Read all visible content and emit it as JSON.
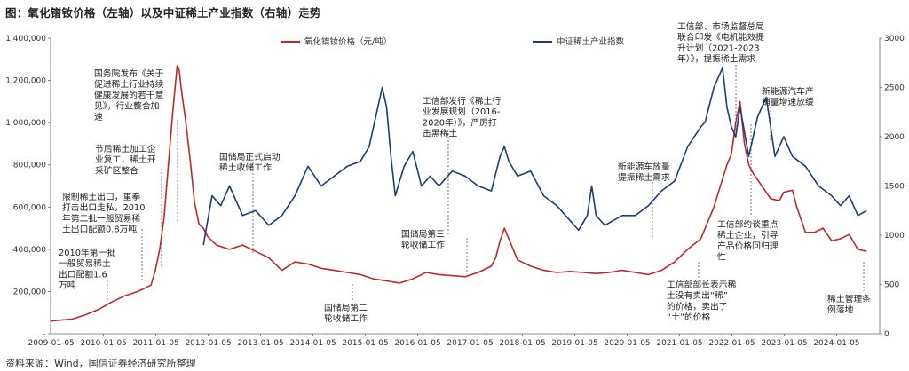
{
  "title": "图：氧化镨钕价格（左轴）以及中证稀土产业指数（右轴）走势",
  "source": "资料来源：Wind，国信证券经济研究所整理",
  "chart_data": {
    "type": "line",
    "title": "图：氧化镨钕价格（左轴）以及中证稀土产业指数（右轴）走势",
    "x_ticks": [
      "2009-01-05",
      "2010-01-05",
      "2011-01-05",
      "2012-01-05",
      "2013-01-05",
      "2014-01-05",
      "2015-01-05",
      "2016-01-05",
      "2017-01-05",
      "2018-01-05",
      "2019-01-05",
      "2020-01-05",
      "2021-01-05",
      "2022-01-05",
      "2023-01-05",
      "2024-01-05"
    ],
    "y_left": {
      "min": 0,
      "max": 1400000,
      "ticks": [
        0,
        200000,
        400000,
        600000,
        800000,
        1000000,
        1200000,
        1400000
      ],
      "tick_labels": [
        "-",
        "200,000",
        "400,000",
        "600,000",
        "800,000",
        "1,000,000",
        "1,200,000",
        "1,400,000"
      ]
    },
    "y_right": {
      "min": 0,
      "max": 3000,
      "ticks": [
        0,
        500,
        1000,
        1500,
        2000,
        2500,
        3000
      ],
      "tick_labels": [
        "0",
        "500",
        "1000",
        "1500",
        "2000",
        "2500",
        "3000"
      ]
    },
    "grid": false,
    "legend": "top",
    "colors": {
      "price": "#c0272d",
      "index": "#1f3d73"
    },
    "series": [
      {
        "name": "氧化镨钕价格（元/吨）",
        "axis": "left",
        "color": "#c0272d",
        "x": [
          "2009-01",
          "2009-06",
          "2009-09",
          "2009-12",
          "2010-03",
          "2010-06",
          "2010-09",
          "2010-12",
          "2011-01",
          "2011-02",
          "2011-03",
          "2011-04",
          "2011-05",
          "2011-06",
          "2011-06-15",
          "2011-07",
          "2011-08",
          "2011-09",
          "2011-10",
          "2011-11",
          "2011-12",
          "2012-01",
          "2012-03",
          "2012-06",
          "2012-09",
          "2012-12",
          "2013-03",
          "2013-06",
          "2013-09",
          "2013-12",
          "2014-03",
          "2014-06",
          "2014-09",
          "2014-12",
          "2015-03",
          "2015-06",
          "2015-09",
          "2015-12",
          "2016-03",
          "2016-06",
          "2016-09",
          "2016-12",
          "2017-03",
          "2017-06",
          "2017-07",
          "2017-08",
          "2017-09",
          "2017-10",
          "2017-12",
          "2018-03",
          "2018-06",
          "2018-09",
          "2018-12",
          "2019-03",
          "2019-06",
          "2019-09",
          "2019-12",
          "2020-03",
          "2020-06",
          "2020-09",
          "2020-12",
          "2021-03",
          "2021-06",
          "2021-09",
          "2021-12",
          "2022-01",
          "2022-02",
          "2022-03",
          "2022-04",
          "2022-05",
          "2022-06",
          "2022-08",
          "2022-10",
          "2022-12",
          "2023-01",
          "2023-03",
          "2023-04",
          "2023-06",
          "2023-08",
          "2023-10",
          "2023-12",
          "2024-02",
          "2024-04",
          "2024-06",
          "2024-08"
        ],
        "values": [
          60000,
          70000,
          90000,
          115000,
          150000,
          180000,
          200000,
          230000,
          300000,
          400000,
          550000,
          800000,
          1050000,
          1270000,
          1250000,
          1150000,
          1000000,
          820000,
          620000,
          520000,
          500000,
          460000,
          420000,
          400000,
          420000,
          390000,
          360000,
          300000,
          340000,
          330000,
          310000,
          300000,
          290000,
          280000,
          260000,
          250000,
          240000,
          260000,
          290000,
          280000,
          275000,
          270000,
          290000,
          320000,
          360000,
          440000,
          500000,
          450000,
          350000,
          320000,
          300000,
          290000,
          295000,
          290000,
          285000,
          290000,
          300000,
          290000,
          280000,
          300000,
          340000,
          400000,
          450000,
          600000,
          800000,
          850000,
          1000000,
          1100000,
          900000,
          800000,
          760000,
          700000,
          640000,
          630000,
          670000,
          680000,
          600000,
          480000,
          480000,
          500000,
          440000,
          450000,
          470000,
          400000,
          390000
        ]
      },
      {
        "name": "中证稀土产业指数",
        "axis": "right",
        "color": "#1f3d73",
        "x": [
          "2011-12",
          "2012-02",
          "2012-04",
          "2012-06",
          "2012-09",
          "2012-12",
          "2013-03",
          "2013-06",
          "2013-09",
          "2013-12",
          "2014-03",
          "2014-06",
          "2014-09",
          "2014-12",
          "2015-02",
          "2015-04",
          "2015-05",
          "2015-06",
          "2015-07",
          "2015-08",
          "2015-10",
          "2015-12",
          "2016-02",
          "2016-04",
          "2016-06",
          "2016-09",
          "2016-12",
          "2017-03",
          "2017-06",
          "2017-08",
          "2017-09",
          "2017-10",
          "2017-12",
          "2018-03",
          "2018-06",
          "2018-09",
          "2018-12",
          "2019-02",
          "2019-04",
          "2019-05",
          "2019-06",
          "2019-08",
          "2019-10",
          "2019-12",
          "2020-03",
          "2020-06",
          "2020-09",
          "2020-12",
          "2021-03",
          "2021-06",
          "2021-07",
          "2021-09",
          "2021-11",
          "2021-12",
          "2022-01",
          "2022-02",
          "2022-03",
          "2022-05",
          "2022-07",
          "2022-09",
          "2022-11",
          "2023-01",
          "2023-03",
          "2023-06",
          "2023-09",
          "2023-12",
          "2024-02",
          "2024-04",
          "2024-06",
          "2024-08"
        ],
        "values": [
          900,
          1400,
          1300,
          1500,
          1200,
          1250,
          1100,
          1200,
          1400,
          1700,
          1500,
          1600,
          1700,
          1750,
          1900,
          2300,
          2500,
          2300,
          1800,
          1400,
          1700,
          1850,
          1500,
          1600,
          1500,
          1650,
          1600,
          1500,
          1450,
          1800,
          1900,
          1750,
          1600,
          1650,
          1400,
          1300,
          1150,
          1050,
          1200,
          1500,
          1200,
          1100,
          1150,
          1200,
          1200,
          1300,
          1450,
          1550,
          1900,
          2100,
          2150,
          2500,
          2700,
          2300,
          2100,
          2000,
          2300,
          1800,
          2200,
          2400,
          1800,
          2000,
          1800,
          1700,
          1500,
          1400,
          1300,
          1400,
          1200,
          1250
        ]
      }
    ],
    "annotations": [
      [
        "2010年第一批",
        "一般贸易稀土",
        "出口配额1.6",
        "万吨"
      ],
      [
        "限制稀土出口，重拳",
        "打击出口走私，2010",
        "年第二批一般贸易稀",
        "土出口配额0.8万吨"
      ],
      [
        "节后稀土加工企",
        "业复工，稀土开",
        "采矿区整合"
      ],
      [
        "国务院发布《关于",
        "促进稀土行业持续",
        "健康发展的若干意",
        "见》，行业整合加",
        "速"
      ],
      [
        "国储局正式启动",
        "稀土收储工作"
      ],
      [
        "国储局第二",
        "轮收储工作"
      ],
      [
        "国储局第三",
        "轮收储工作"
      ],
      [
        "工信部发行《稀土行",
        "业发展规划（2016-",
        "2020年）》，严厉打",
        "击黑稀土"
      ],
      [
        "新能源车放量",
        "提振稀土需求"
      ],
      [
        "工信部部长表示稀",
        "土没有卖出“稀”",
        "的价格，卖出了",
        "“土”的价格"
      ],
      [
        "工信部、市场监督总局",
        "联合印发《电机能效提",
        "升计划（2021-2023",
        "年）》，提振稀土需求"
      ],
      [
        "工信部约谈重点",
        "稀土企业，引导",
        "产品价格回归理",
        "性"
      ],
      [
        "新能源汽车产",
        "销量增速放缓"
      ],
      [
        "稀土管理条",
        "例落地"
      ]
    ]
  }
}
